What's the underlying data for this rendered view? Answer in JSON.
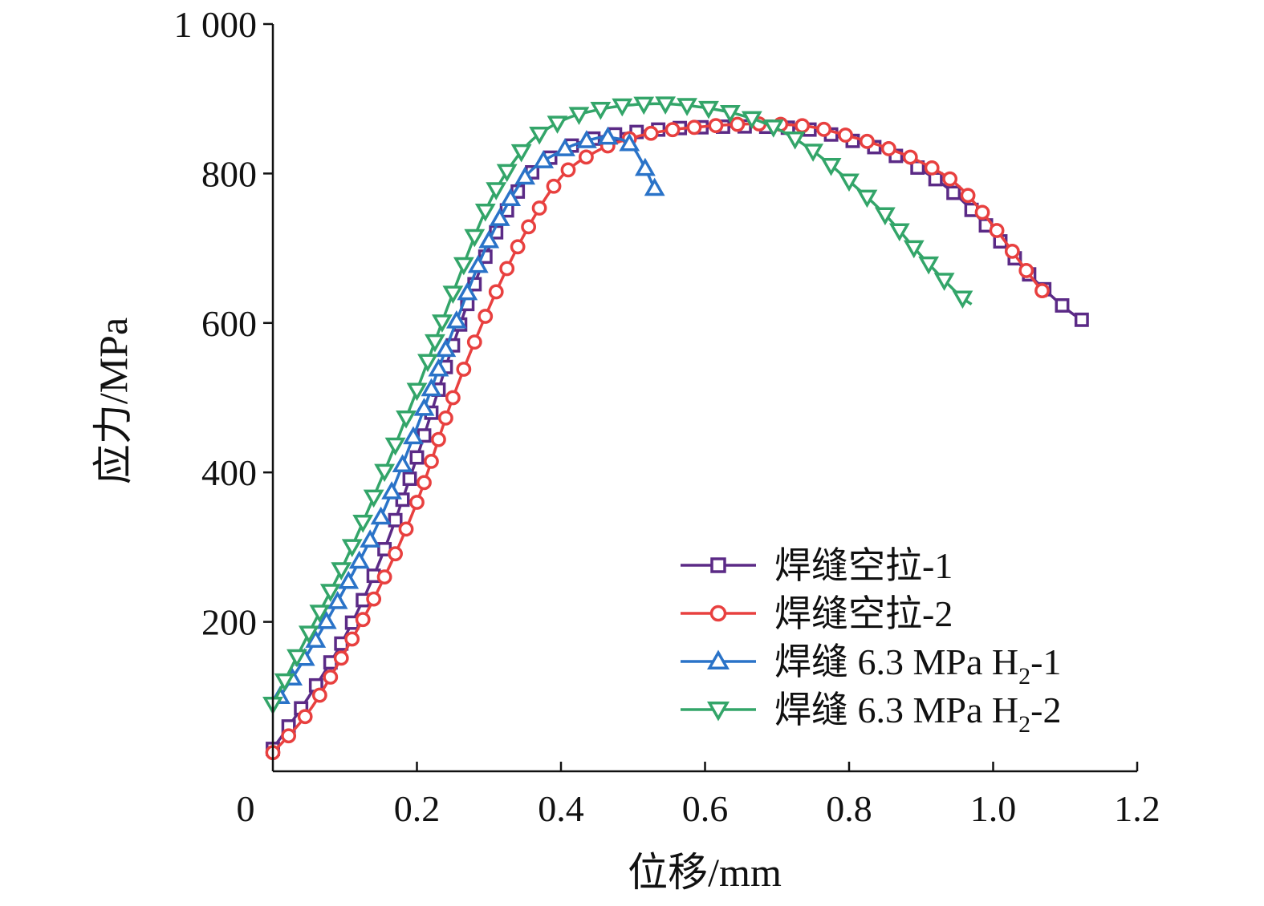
{
  "chart_data": {
    "type": "line",
    "xlabel": "位移/mm",
    "ylabel": "应力/MPa",
    "xlim": [
      0,
      1.2
    ],
    "ylim": [
      0,
      1000
    ],
    "x_ticks": [
      {
        "value": 0,
        "label": "0"
      },
      {
        "value": 0.2,
        "label": "0.2"
      },
      {
        "value": 0.4,
        "label": "0.4"
      },
      {
        "value": 0.6,
        "label": "0.6"
      },
      {
        "value": 0.8,
        "label": "0.8"
      },
      {
        "value": 1.0,
        "label": "1.0"
      },
      {
        "value": 1.2,
        "label": "1.2"
      }
    ],
    "y_ticks": [
      {
        "value": 200,
        "label": "200"
      },
      {
        "value": 400,
        "label": "400"
      },
      {
        "value": 600,
        "label": "600"
      },
      {
        "value": 800,
        "label": "800"
      },
      {
        "value": 1000,
        "label": "1 000"
      }
    ],
    "grid": false,
    "legend_position": "bottom-right",
    "series": [
      {
        "name": "焊缝空拉-1",
        "label_main": "焊缝空拉-1",
        "label_sub": "",
        "label_tail": "",
        "color": "#5b2a86",
        "marker": "square",
        "x": [
          0.0,
          0.05,
          0.1,
          0.15,
          0.2,
          0.25,
          0.3,
          0.35,
          0.4,
          0.45,
          0.5,
          0.55,
          0.6,
          0.65,
          0.7,
          0.75,
          0.8,
          0.85,
          0.9,
          0.95,
          1.0,
          1.05,
          1.1,
          1.13
        ],
        "y": [
          30,
          100,
          180,
          285,
          420,
          570,
          700,
          790,
          830,
          848,
          855,
          860,
          862,
          863,
          862,
          858,
          845,
          830,
          805,
          770,
          720,
          665,
          620,
          600
        ]
      },
      {
        "name": "焊缝空拉-2",
        "label_main": "焊缝空拉-2",
        "label_sub": "",
        "label_tail": "",
        "color": "#e8403f",
        "marker": "circle",
        "x": [
          0.0,
          0.05,
          0.1,
          0.15,
          0.2,
          0.25,
          0.3,
          0.35,
          0.4,
          0.45,
          0.5,
          0.55,
          0.6,
          0.65,
          0.7,
          0.75,
          0.8,
          0.85,
          0.9,
          0.95,
          1.0,
          1.05,
          1.075
        ],
        "y": [
          25,
          80,
          160,
          250,
          360,
          500,
          620,
          720,
          795,
          830,
          848,
          858,
          863,
          866,
          866,
          862,
          850,
          835,
          815,
          785,
          730,
          665,
          635
        ]
      },
      {
        "name": "焊缝 6.3 MPa H2-1",
        "label_main": "焊缝 6.3 MPa H",
        "label_sub": "2",
        "label_tail": "-1",
        "color": "#2a73c8",
        "marker": "triangle-up",
        "x": [
          0.01,
          0.05,
          0.1,
          0.15,
          0.2,
          0.25,
          0.3,
          0.35,
          0.4,
          0.44,
          0.47,
          0.5,
          0.53
        ],
        "y": [
          100,
          160,
          245,
          340,
          460,
          590,
          710,
          795,
          830,
          845,
          848,
          835,
          780
        ]
      },
      {
        "name": "焊缝 6.3 MPa H2-2",
        "label_main": "焊缝 6.3 MPa H",
        "label_sub": "2",
        "label_tail": "-2",
        "color": "#33a569",
        "marker": "triangle-down",
        "x": [
          0.0,
          0.05,
          0.1,
          0.15,
          0.2,
          0.25,
          0.3,
          0.35,
          0.4,
          0.45,
          0.5,
          0.55,
          0.6,
          0.65,
          0.7,
          0.75,
          0.8,
          0.85,
          0.9,
          0.95,
          0.97
        ],
        "y": [
          90,
          185,
          280,
          390,
          510,
          640,
          760,
          835,
          870,
          885,
          892,
          893,
          888,
          878,
          860,
          830,
          790,
          745,
          690,
          640,
          625
        ]
      }
    ]
  }
}
